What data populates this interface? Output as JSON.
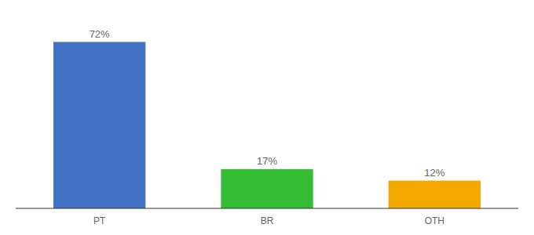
{
  "chart_data": {
    "type": "bar",
    "categories": [
      "PT",
      "BR",
      "OTH"
    ],
    "values": [
      72,
      17,
      12
    ],
    "value_labels": [
      "72%",
      "17%",
      "12%"
    ],
    "colors": [
      "#4472c4",
      "#33bb33",
      "#f5a800"
    ],
    "ylim": [
      0,
      82
    ],
    "data_labels": true,
    "tick_labels": "x",
    "grid": false
  }
}
